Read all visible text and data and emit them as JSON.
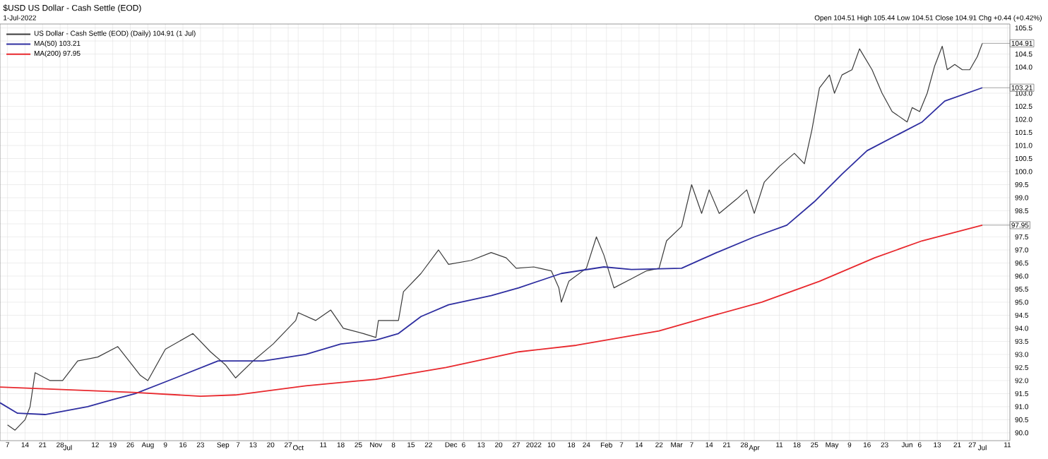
{
  "chart_data": {
    "type": "line",
    "title": "$USD US Dollar - Cash Settle (EOD)",
    "subtitle": "1-Jul-2022",
    "annotations": [
      "Open 104.51 High 105.44 Low 104.51 Close 104.91 Chg +0.44 (+0.42%)",
      {
        "text": "104.91",
        "x": "2022-07-01",
        "y": 104.91
      },
      {
        "text": "103.21",
        "x": "2022-07-01",
        "y": 103.21
      },
      {
        "text": "97.95",
        "x": "2022-07-01",
        "y": 97.95
      }
    ],
    "xlim": [
      "2021-06-04",
      "2022-07-12"
    ],
    "xticks": [
      {
        "value": "2021-06-07",
        "label": "7"
      },
      {
        "value": "2021-06-14",
        "label": "14"
      },
      {
        "value": "2021-06-21",
        "label": "21"
      },
      {
        "value": "2021-06-28",
        "label": "28"
      },
      {
        "value": "2021-07-01",
        "label": "Jul"
      },
      {
        "value": "2021-07-12",
        "label": "12"
      },
      {
        "value": "2021-07-19",
        "label": "19"
      },
      {
        "value": "2021-07-26",
        "label": "26"
      },
      {
        "value": "2021-08-02",
        "label": "Aug"
      },
      {
        "value": "2021-08-09",
        "label": "9"
      },
      {
        "value": "2021-08-16",
        "label": "16"
      },
      {
        "value": "2021-08-23",
        "label": "23"
      },
      {
        "value": "2021-09-01",
        "label": "Sep"
      },
      {
        "value": "2021-09-07",
        "label": "7"
      },
      {
        "value": "2021-09-13",
        "label": "13"
      },
      {
        "value": "2021-09-20",
        "label": "20"
      },
      {
        "value": "2021-09-27",
        "label": "27"
      },
      {
        "value": "2021-10-01",
        "label": "Oct"
      },
      {
        "value": "2021-10-11",
        "label": "11"
      },
      {
        "value": "2021-10-18",
        "label": "18"
      },
      {
        "value": "2021-10-25",
        "label": "25"
      },
      {
        "value": "2021-11-01",
        "label": "Nov"
      },
      {
        "value": "2021-11-08",
        "label": "8"
      },
      {
        "value": "2021-11-15",
        "label": "15"
      },
      {
        "value": "2021-11-22",
        "label": "22"
      },
      {
        "value": "2021-12-01",
        "label": "Dec"
      },
      {
        "value": "2021-12-06",
        "label": "6"
      },
      {
        "value": "2021-12-13",
        "label": "13"
      },
      {
        "value": "2021-12-20",
        "label": "20"
      },
      {
        "value": "2021-12-27",
        "label": "27"
      },
      {
        "value": "2022-01-03",
        "label": "2022"
      },
      {
        "value": "2022-01-10",
        "label": "10"
      },
      {
        "value": "2022-01-18",
        "label": "18"
      },
      {
        "value": "2022-01-24",
        "label": "24"
      },
      {
        "value": "2022-02-01",
        "label": "Feb"
      },
      {
        "value": "2022-02-07",
        "label": "7"
      },
      {
        "value": "2022-02-14",
        "label": "14"
      },
      {
        "value": "2022-02-22",
        "label": "22"
      },
      {
        "value": "2022-03-01",
        "label": "Mar"
      },
      {
        "value": "2022-03-07",
        "label": "7"
      },
      {
        "value": "2022-03-14",
        "label": "14"
      },
      {
        "value": "2022-03-21",
        "label": "21"
      },
      {
        "value": "2022-03-28",
        "label": "28"
      },
      {
        "value": "2022-04-01",
        "label": "Apr"
      },
      {
        "value": "2022-04-11",
        "label": "11"
      },
      {
        "value": "2022-04-18",
        "label": "18"
      },
      {
        "value": "2022-04-25",
        "label": "25"
      },
      {
        "value": "2022-05-02",
        "label": "May"
      },
      {
        "value": "2022-05-09",
        "label": "9"
      },
      {
        "value": "2022-05-16",
        "label": "16"
      },
      {
        "value": "2022-05-23",
        "label": "23"
      },
      {
        "value": "2022-06-01",
        "label": "Jun"
      },
      {
        "value": "2022-06-06",
        "label": "6"
      },
      {
        "value": "2022-06-13",
        "label": "13"
      },
      {
        "value": "2022-06-21",
        "label": "21"
      },
      {
        "value": "2022-06-27",
        "label": "27"
      },
      {
        "value": "2022-07-01",
        "label": "Jul"
      },
      {
        "value": "2022-07-11",
        "label": "11"
      }
    ],
    "ylim": [
      89.7,
      105.65
    ],
    "yticks": [
      {
        "value": 90,
        "label": "90.0"
      },
      90.5,
      {
        "value": 91,
        "label": "91.0"
      },
      91.5,
      {
        "value": 92,
        "label": "92.0"
      },
      92.5,
      {
        "value": 93,
        "label": "93.0"
      },
      93.5,
      {
        "value": 94,
        "label": "94.0"
      },
      94.5,
      {
        "value": 95,
        "label": "95.0"
      },
      95.5,
      {
        "value": 96,
        "label": "96.0"
      },
      96.5,
      {
        "value": 97,
        "label": "97.0"
      },
      97.5,
      {
        "value": 98,
        "label": null
      },
      98.5,
      {
        "value": 99,
        "label": "99.0"
      },
      99.5,
      {
        "value": 100,
        "label": "100.0"
      },
      100.5,
      {
        "value": 101,
        "label": "101.0"
      },
      101.5,
      {
        "value": 102,
        "label": "102.0"
      },
      102.5,
      {
        "value": 103,
        "label": "103.0"
      },
      {
        "value": 103.5,
        "label": null
      },
      {
        "value": 104,
        "label": "104.0"
      },
      104.5,
      {
        "value": 105,
        "label": null
      },
      105.5
    ],
    "grid": true,
    "legend": "top left",
    "series": [
      {
        "name": "US Dollar - Cash Settle (EOD) (Daily) 104.91 (1 Jul)",
        "color": "#3a3a3a",
        "x": [
          "2021-06-07",
          "2021-06-10",
          "2021-06-14",
          "2021-06-16",
          "2021-06-18",
          "2021-06-24",
          "2021-06-29",
          "2021-07-05",
          "2021-07-13",
          "2021-07-21",
          "2021-07-30",
          "2021-08-02",
          "2021-08-09",
          "2021-08-20",
          "2021-08-27",
          "2021-09-02",
          "2021-09-06",
          "2021-09-13",
          "2021-09-21",
          "2021-09-30",
          "2021-10-01",
          "2021-10-08",
          "2021-10-14",
          "2021-10-19",
          "2021-10-27",
          "2021-11-01",
          "2021-11-02",
          "2021-11-10",
          "2021-11-12",
          "2021-11-19",
          "2021-11-26",
          "2021-11-30",
          "2021-12-09",
          "2021-12-17",
          "2021-12-23",
          "2021-12-27",
          "2022-01-03",
          "2022-01-10",
          "2022-01-13",
          "2022-01-14",
          "2022-01-17",
          "2022-01-24",
          "2022-01-28",
          "2022-01-31",
          "2022-02-04",
          "2022-02-11",
          "2022-02-17",
          "2022-02-22",
          "2022-02-25",
          "2022-03-03",
          "2022-03-07",
          "2022-03-11",
          "2022-03-14",
          "2022-03-18",
          "2022-03-25",
          "2022-03-29",
          "2022-04-01",
          "2022-04-05",
          "2022-04-11",
          "2022-04-17",
          "2022-04-21",
          "2022-04-24",
          "2022-04-27",
          "2022-05-01",
          "2022-05-03",
          "2022-05-06",
          "2022-05-10",
          "2022-05-13",
          "2022-05-18",
          "2022-05-22",
          "2022-05-26",
          "2022-06-01",
          "2022-06-03",
          "2022-06-06",
          "2022-06-09",
          "2022-06-12",
          "2022-06-15",
          "2022-06-17",
          "2022-06-20",
          "2022-06-23",
          "2022-06-26",
          "2022-06-29",
          "2022-07-01"
        ],
        "values": [
          90.3,
          90.1,
          90.5,
          91.0,
          92.3,
          92.0,
          92.0,
          92.75,
          92.9,
          93.3,
          92.2,
          92.0,
          93.2,
          93.8,
          93.1,
          92.6,
          92.1,
          92.75,
          93.4,
          94.3,
          94.6,
          94.3,
          94.7,
          94.0,
          93.8,
          93.65,
          94.3,
          94.3,
          95.4,
          96.1,
          97.0,
          96.45,
          96.6,
          96.9,
          96.7,
          96.3,
          96.35,
          96.2,
          95.55,
          95.0,
          95.8,
          96.3,
          97.5,
          96.8,
          95.55,
          95.9,
          96.2,
          96.3,
          97.35,
          97.9,
          99.5,
          98.4,
          99.3,
          98.4,
          98.95,
          99.3,
          98.4,
          99.6,
          100.2,
          100.7,
          100.3,
          101.6,
          103.2,
          103.7,
          103.0,
          103.7,
          103.9,
          104.7,
          103.9,
          103.0,
          102.3,
          101.9,
          102.45,
          102.3,
          103.0,
          104.05,
          104.8,
          103.9,
          104.1,
          103.9,
          103.9,
          104.4,
          104.91
        ]
      },
      {
        "name": "MA(50) 103.21",
        "color": "#2e2ea0",
        "x": [
          "2021-06-04",
          "2021-06-11",
          "2021-06-22",
          "2021-07-09",
          "2021-07-19",
          "2021-07-28",
          "2021-08-09",
          "2021-08-30",
          "2021-09-17",
          "2021-10-04",
          "2021-10-18",
          "2021-11-01",
          "2021-11-10",
          "2021-11-19",
          "2021-11-30",
          "2021-12-17",
          "2021-12-28",
          "2022-01-14",
          "2022-01-31",
          "2022-02-11",
          "2022-03-03",
          "2022-03-17",
          "2022-04-01",
          "2022-04-14",
          "2022-04-25",
          "2022-05-06",
          "2022-05-16",
          "2022-05-27",
          "2022-06-07",
          "2022-06-16",
          "2022-07-01"
        ],
        "values": [
          91.15,
          90.75,
          90.7,
          91.0,
          91.27,
          91.5,
          91.95,
          92.75,
          92.75,
          93.0,
          93.4,
          93.55,
          93.8,
          94.45,
          94.9,
          95.25,
          95.55,
          96.1,
          96.35,
          96.25,
          96.3,
          96.9,
          97.5,
          97.95,
          98.85,
          99.9,
          100.8,
          101.35,
          101.9,
          102.7,
          103.21
        ]
      },
      {
        "name": "MA(200) 97.95",
        "color": "#e8282d",
        "x": [
          "2021-06-04",
          "2021-07-27",
          "2021-08-23",
          "2021-09-06",
          "2021-10-04",
          "2021-11-01",
          "2021-11-29",
          "2021-12-28",
          "2022-01-20",
          "2022-02-22",
          "2022-03-14",
          "2022-04-04",
          "2022-04-27",
          "2022-05-19",
          "2022-06-07",
          "2022-07-01"
        ],
        "values": [
          91.75,
          91.55,
          91.4,
          91.45,
          91.8,
          92.05,
          92.5,
          93.1,
          93.35,
          93.9,
          94.45,
          95.0,
          95.8,
          96.7,
          97.35,
          97.95
        ]
      }
    ]
  }
}
